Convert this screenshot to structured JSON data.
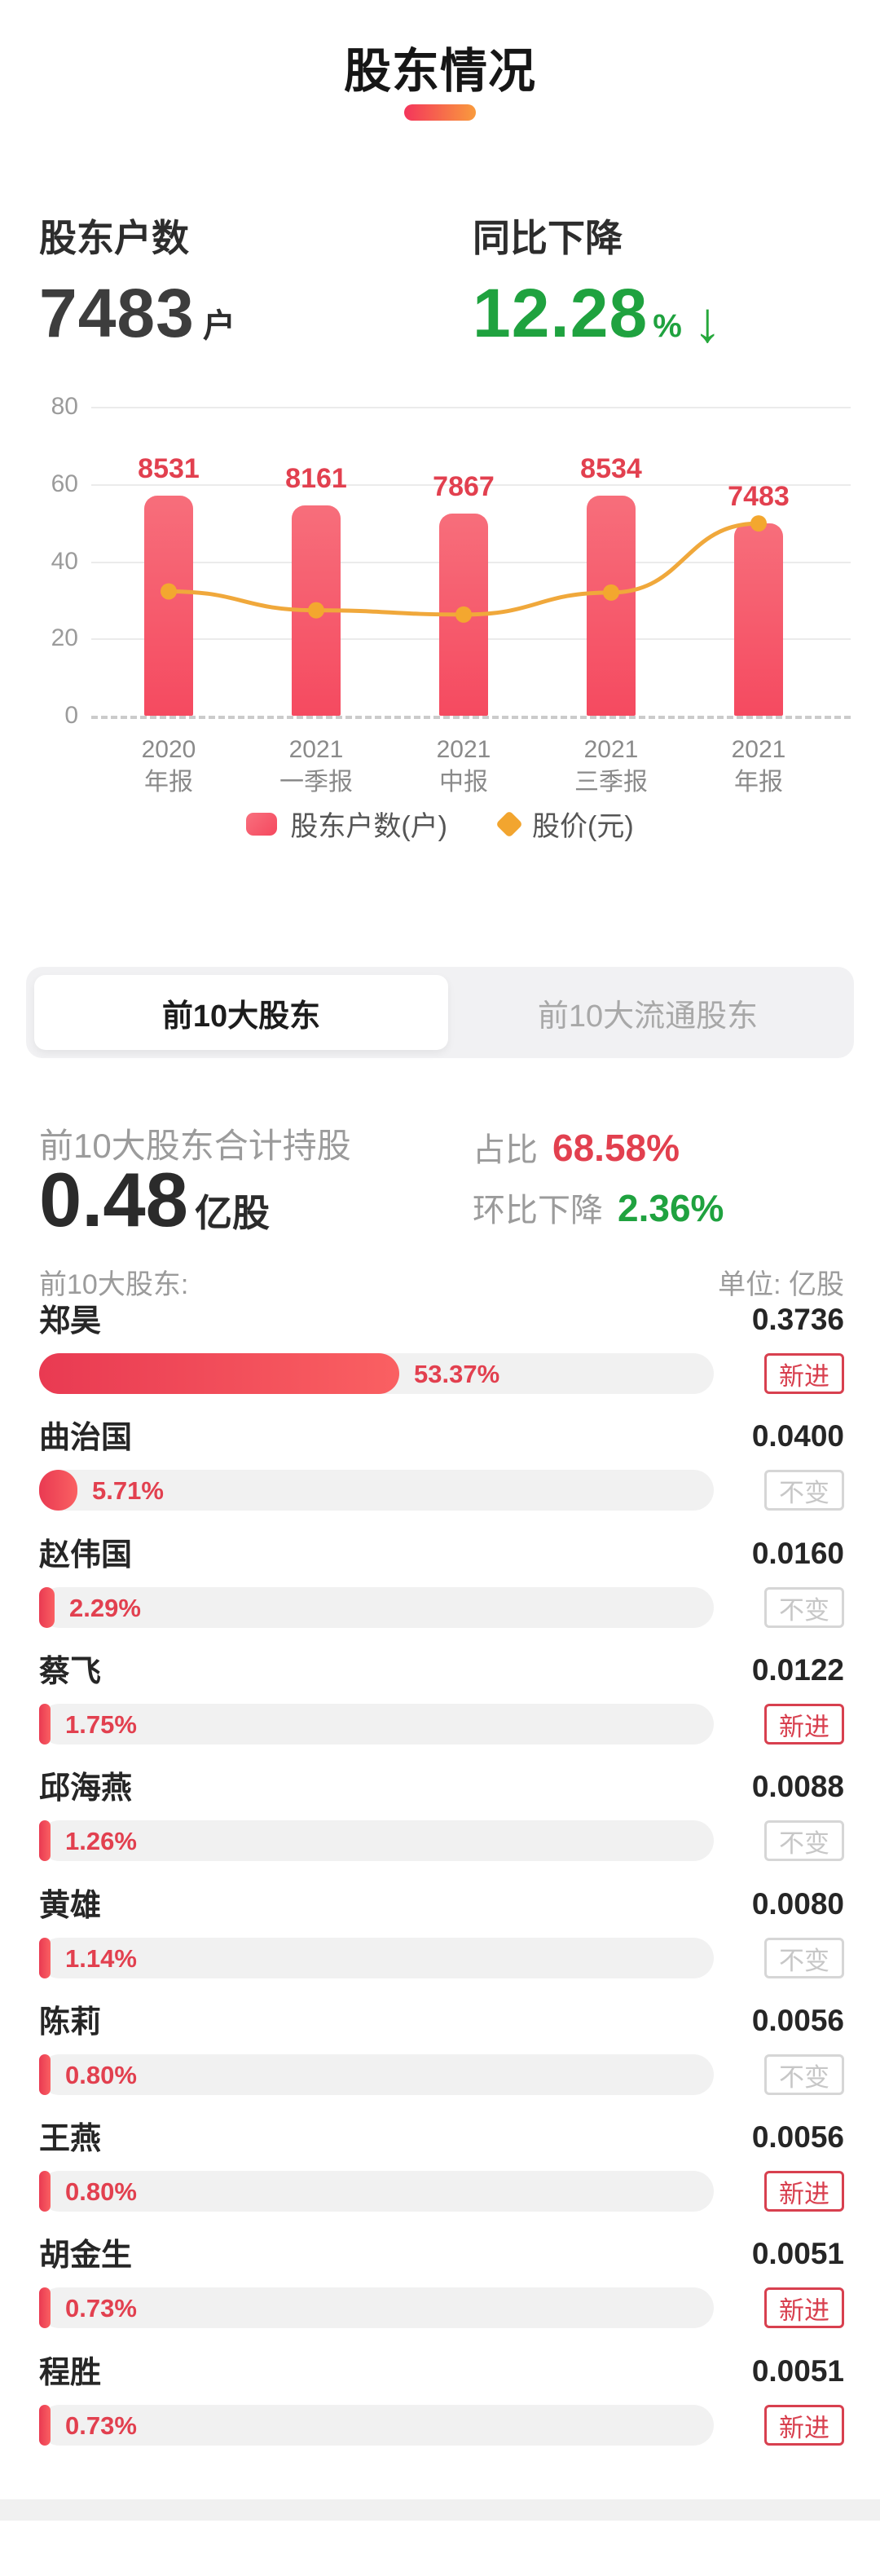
{
  "page": {
    "accent_red": "#E2404F",
    "accent_green": "#1FA23F",
    "accent_orange": "#F0A83B",
    "bar_red": "#F5485E",
    "track_gray": "#F1F1F1"
  },
  "header": {
    "title": "股东情况"
  },
  "stats": {
    "holders_label": "股东户数",
    "holders_value": "7483",
    "holders_unit": "户",
    "yoy_label": "同比下降",
    "yoy_value": "12.28",
    "yoy_unit": "%",
    "down_arrow_icon": "↓"
  },
  "chart_data": {
    "type": "bar+line",
    "categories": [
      "2020\n年报",
      "2021\n一季报",
      "2021\n中报",
      "2021\n三季报",
      "2021\n年报"
    ],
    "series": [
      {
        "name": "股东户数(户)",
        "type": "bar",
        "values": [
          8531,
          8161,
          7867,
          8534,
          7483
        ],
        "axis_values": [
          56.9,
          54.4,
          52.4,
          56.9,
          49.9
        ],
        "color": "#F5485E"
      },
      {
        "name": "股价(元)",
        "type": "line",
        "values": [
          32.2,
          27.3,
          26.2,
          31.9,
          49.8
        ],
        "color": "#F0A83B"
      }
    ],
    "ylim": [
      0,
      80
    ],
    "yticks": [
      0,
      20,
      40,
      60,
      80
    ],
    "grid": true,
    "zero_line_style": "dashed",
    "legend_position": "bottom",
    "bar_label_color": "#E2404F"
  },
  "tabs": [
    {
      "label": "前10大股东",
      "active": true
    },
    {
      "label": "前10大流通股东",
      "active": false
    }
  ],
  "holdings": {
    "total_label": "前10大股东合计持股",
    "total_value": "0.48",
    "total_unit": "亿股",
    "ratio_label": "占比",
    "ratio_value": "68.58%",
    "mom_label": "环比下降",
    "mom_value": "2.36%"
  },
  "list": {
    "header_left": "前10大股东:",
    "header_right": "单位: 亿股",
    "rows": [
      {
        "name": "郑昊",
        "percent": "53.37%",
        "pct": 53.37,
        "value": "0.3736",
        "badge": "新进",
        "badge_type": "new"
      },
      {
        "name": "曲治国",
        "percent": "5.71%",
        "pct": 5.71,
        "value": "0.0400",
        "badge": "不变",
        "badge_type": "unchanged"
      },
      {
        "name": "赵伟国",
        "percent": "2.29%",
        "pct": 2.29,
        "value": "0.0160",
        "badge": "不变",
        "badge_type": "unchanged"
      },
      {
        "name": "蔡飞",
        "percent": "1.75%",
        "pct": 1.75,
        "value": "0.0122",
        "badge": "新进",
        "badge_type": "new"
      },
      {
        "name": "邱海燕",
        "percent": "1.26%",
        "pct": 1.26,
        "value": "0.0088",
        "badge": "不变",
        "badge_type": "unchanged"
      },
      {
        "name": "黄雄",
        "percent": "1.14%",
        "pct": 1.14,
        "value": "0.0080",
        "badge": "不变",
        "badge_type": "unchanged"
      },
      {
        "name": "陈莉",
        "percent": "0.80%",
        "pct": 0.8,
        "value": "0.0056",
        "badge": "不变",
        "badge_type": "unchanged"
      },
      {
        "name": "王燕",
        "percent": "0.80%",
        "pct": 0.8,
        "value": "0.0056",
        "badge": "新进",
        "badge_type": "new"
      },
      {
        "name": "胡金生",
        "percent": "0.73%",
        "pct": 0.73,
        "value": "0.0051",
        "badge": "新进",
        "badge_type": "new"
      },
      {
        "name": "程胜",
        "percent": "0.73%",
        "pct": 0.73,
        "value": "0.0051",
        "badge": "新进",
        "badge_type": "new"
      }
    ]
  }
}
